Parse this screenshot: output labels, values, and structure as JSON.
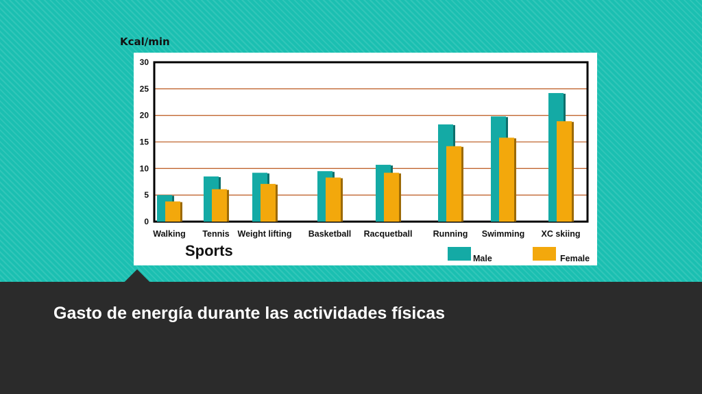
{
  "slide": {
    "title": "Gasto de energía durante las actividades físicas"
  },
  "colors": {
    "background_teal": "#1bbfb1",
    "background_dark": "#2b2b2b",
    "male": "#14aaa5",
    "female": "#f3a80c",
    "grid": "#c0652f"
  },
  "chart_data": {
    "type": "bar",
    "unit_label": "Kcal/min",
    "xlabel": "Sports",
    "categories": [
      "Walking",
      "Tennis",
      "Weight lifting",
      "Basketball",
      "Racquetball",
      "Running",
      "Swimming",
      "XC skiing"
    ],
    "series": [
      {
        "name": "Male",
        "values": [
          5,
          8.5,
          9.2,
          9.5,
          10.7,
          18.3,
          19.8,
          24.2
        ]
      },
      {
        "name": "Female",
        "values": [
          3.8,
          6.1,
          7.1,
          8.3,
          9.2,
          14.2,
          15.8,
          18.9
        ]
      }
    ],
    "ylim": [
      0,
      30
    ],
    "yticks": [
      0,
      5,
      10,
      15,
      20,
      25,
      30
    ],
    "grid": true,
    "legend_position": "bottom-right"
  }
}
